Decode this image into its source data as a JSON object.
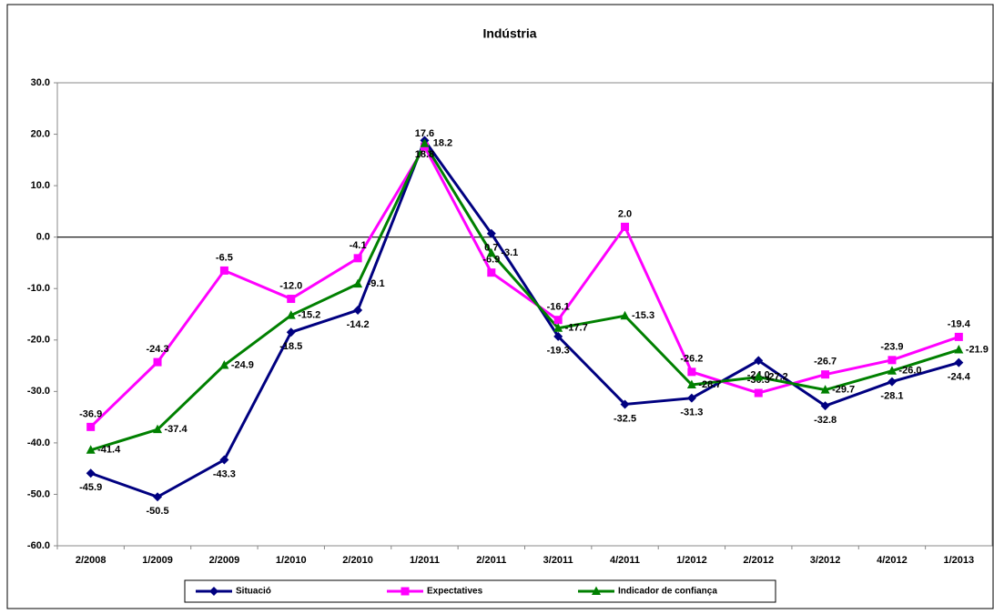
{
  "chart_data": {
    "type": "line",
    "title": "Indústria",
    "categories": [
      "2/2008",
      "1/2009",
      "2/2009",
      "1/2010",
      "2/2010",
      "1/2011",
      "2/2011",
      "3/2011",
      "4/2011",
      "1/2012",
      "2/2012",
      "3/2012",
      "4/2012",
      "1/2013"
    ],
    "series": [
      {
        "name": "Situació",
        "color": "#000080",
        "marker": "diamond",
        "values": [
          -45.9,
          -50.5,
          -43.3,
          -18.5,
          -14.2,
          18.8,
          0.7,
          -19.3,
          -32.5,
          -31.3,
          -24.0,
          -32.8,
          -28.1,
          -24.4
        ],
        "value_labels": [
          "-45.9",
          "-50.5",
          "-43.3",
          "-18.5",
          "-14.2",
          "18.8",
          "0.7",
          "-19.3",
          "-32.5",
          "-31.3",
          "-24.0",
          "-32.8",
          "-28.1",
          "-24.4"
        ]
      },
      {
        "name": "Expectatives",
        "color": "#ff00ff",
        "marker": "square",
        "values": [
          -36.9,
          -24.3,
          -6.5,
          -12.0,
          -4.1,
          17.6,
          -6.9,
          -16.1,
          2.0,
          -26.2,
          -30.3,
          -26.7,
          -23.9,
          -19.4
        ],
        "value_labels": [
          "-36.9",
          "-24.3",
          "-6.5",
          "-12.0",
          "-4.1",
          "17.6",
          "-6.9",
          "-16.1",
          "2.0",
          "-26.2",
          "-30.3",
          "-26.7",
          "-23.9",
          "-19.4"
        ]
      },
      {
        "name": "Indicador de confiança",
        "color": "#008000",
        "marker": "triangle",
        "values": [
          -41.4,
          -37.4,
          -24.9,
          -15.2,
          -9.1,
          18.2,
          -3.1,
          -17.7,
          -15.3,
          -28.7,
          -27.2,
          -29.7,
          -26.0,
          -21.9
        ],
        "value_labels": [
          "-41.4",
          "-37.4",
          "-24.9",
          "-15.2",
          "-9.1",
          "18.2",
          "-3.1",
          "-17.7",
          "-15.3",
          "-28.7",
          "-27.2",
          "-29.7",
          "-26.0",
          "-21.9"
        ]
      }
    ],
    "ylim": [
      -60,
      30
    ],
    "yticks": [
      {
        "value": -60,
        "label": "-60.0"
      },
      {
        "value": -50,
        "label": "-50.0"
      },
      {
        "value": -40,
        "label": "-40.0"
      },
      {
        "value": -30,
        "label": "-30.0"
      },
      {
        "value": -20,
        "label": "-20.0"
      },
      {
        "value": -10,
        "label": "-10.0"
      },
      {
        "value": 0,
        "label": "0.0"
      },
      {
        "value": 10,
        "label": "10.0"
      },
      {
        "value": 20,
        "label": "20.0"
      },
      {
        "value": 30,
        "label": "30.0"
      }
    ],
    "legend": "bottom"
  }
}
